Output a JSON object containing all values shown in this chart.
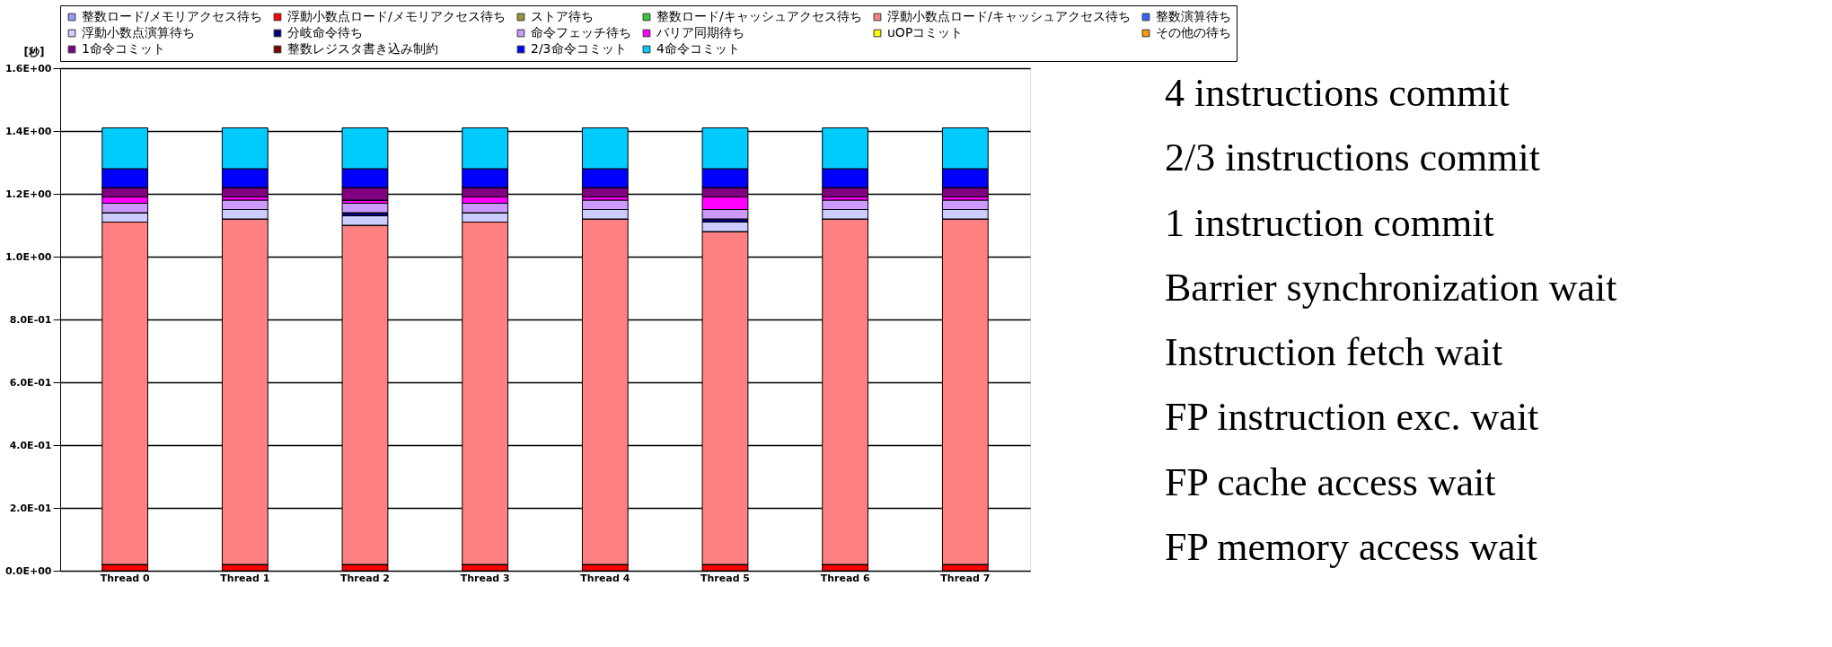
{
  "chart_data": {
    "type": "bar",
    "stacked": true,
    "ylabel": "[秒]",
    "categories": [
      "Thread 0",
      "Thread 1",
      "Thread 2",
      "Thread 3",
      "Thread 4",
      "Thread 5",
      "Thread 6",
      "Thread 7"
    ],
    "ylim": [
      0,
      1.6
    ],
    "yticks": [
      {
        "value": 0,
        "label": "0.0E+00"
      },
      {
        "value": 0.2,
        "label": "2.0E-01"
      },
      {
        "value": 0.4,
        "label": "4.0E-01"
      },
      {
        "value": 0.6,
        "label": "6.0E-01"
      },
      {
        "value": 0.8,
        "label": "8.0E-01"
      },
      {
        "value": 1.0,
        "label": "1.0E+00"
      },
      {
        "value": 1.2,
        "label": "1.2E+00"
      },
      {
        "value": 1.4,
        "label": "1.4E+00"
      },
      {
        "value": 1.6,
        "label": "1.6E+00"
      }
    ],
    "grid": "y",
    "legend": "top",
    "series": [
      {
        "name": "整数ロード/メモリアクセス待ち",
        "color": "#9999ff",
        "values": [
          0,
          0,
          0,
          0,
          0,
          0,
          0,
          0
        ]
      },
      {
        "name": "浮動小数点ロード/メモリアクセス待ち",
        "color": "#ff0000",
        "values": [
          0.02,
          0.02,
          0.02,
          0.02,
          0.02,
          0.02,
          0.02,
          0.02
        ]
      },
      {
        "name": "ストア待ち",
        "color": "#999933",
        "values": [
          0,
          0,
          0,
          0,
          0,
          0,
          0,
          0
        ]
      },
      {
        "name": "整数ロード/キャッシュアクセス待ち",
        "color": "#33cc33",
        "values": [
          0,
          0,
          0,
          0,
          0,
          0,
          0,
          0
        ]
      },
      {
        "name": "浮動小数点ロード/キャッシュアクセス待ち",
        "color": "#ff8080",
        "values": [
          1.09,
          1.1,
          1.08,
          1.09,
          1.1,
          1.06,
          1.1,
          1.1
        ]
      },
      {
        "name": "整数演算待ち",
        "color": "#3366ff",
        "values": [
          0,
          0,
          0,
          0,
          0,
          0,
          0,
          0
        ]
      },
      {
        "name": "浮動小数点演算待ち",
        "color": "#ccccff",
        "values": [
          0.03,
          0.03,
          0.03,
          0.03,
          0.03,
          0.03,
          0.03,
          0.03
        ]
      },
      {
        "name": "分岐命令待ち",
        "color": "#000080",
        "values": [
          0,
          0,
          0.01,
          0,
          0,
          0.01,
          0,
          0
        ]
      },
      {
        "name": "命令フェッチ待ち",
        "color": "#cc99ff",
        "values": [
          0.03,
          0.03,
          0.03,
          0.03,
          0.03,
          0.03,
          0.03,
          0.03
        ]
      },
      {
        "name": "バリア同期待ち",
        "color": "#ff00ff",
        "values": [
          0.02,
          0.01,
          0.01,
          0.02,
          0.01,
          0.04,
          0.01,
          0.01
        ]
      },
      {
        "name": "uOPコミット",
        "color": "#ffff00",
        "values": [
          0,
          0,
          0,
          0,
          0,
          0,
          0,
          0
        ]
      },
      {
        "name": "その他の待ち",
        "color": "#ff9900",
        "values": [
          0,
          0,
          0,
          0,
          0,
          0,
          0,
          0
        ]
      },
      {
        "name": "1命令コミット",
        "color": "#800080",
        "values": [
          0.03,
          0.03,
          0.04,
          0.03,
          0.03,
          0.03,
          0.03,
          0.03
        ]
      },
      {
        "name": "整数レジスタ書き込み制約",
        "color": "#800000",
        "values": [
          0,
          0,
          0,
          0,
          0,
          0,
          0,
          0
        ]
      },
      {
        "name": "2/3命令コミット",
        "color": "#0000ff",
        "values": [
          0.06,
          0.06,
          0.06,
          0.06,
          0.06,
          0.06,
          0.06,
          0.06
        ]
      },
      {
        "name": "4命令コミット",
        "color": "#00ccff",
        "values": [
          0.13,
          0.13,
          0.13,
          0.13,
          0.13,
          0.13,
          0.13,
          0.13
        ]
      }
    ],
    "annotations": [
      "4 instructions commit",
      "2/3 instructions commit",
      "1 instruction commit",
      "Barrier synchronization wait",
      "Instruction fetch wait",
      "FP instruction exc. wait",
      "FP cache access wait",
      "FP memory access wait"
    ]
  }
}
